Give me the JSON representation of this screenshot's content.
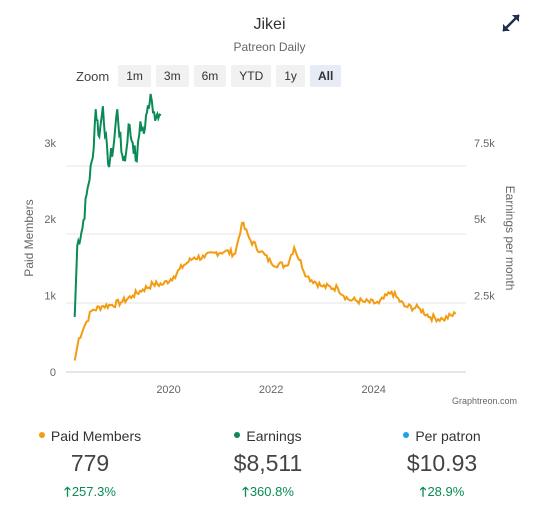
{
  "header": {
    "title": "Jikei",
    "subtitle": "Patreon Daily"
  },
  "zoom": {
    "label": "Zoom",
    "buttons": [
      {
        "label": "1m",
        "active": false
      },
      {
        "label": "3m",
        "active": false
      },
      {
        "label": "6m",
        "active": false
      },
      {
        "label": "YTD",
        "active": false
      },
      {
        "label": "1y",
        "active": false
      },
      {
        "label": "All",
        "active": true
      }
    ]
  },
  "credit": "Graphtreon.com",
  "chart_data": {
    "type": "line",
    "x_ticks": [
      "2020",
      "2022",
      "2024"
    ],
    "y_left": {
      "label": "Paid Members",
      "ticks": [
        "0",
        "1k",
        "2k",
        "3k"
      ],
      "range": [
        0,
        3600
      ]
    },
    "y_right": {
      "label": "Earnings per month",
      "ticks": [
        "2.5k",
        "5k",
        "7.5k"
      ],
      "range": [
        0,
        9000
      ]
    },
    "grid": true,
    "series": [
      {
        "name": "Paid Members",
        "axis": "left",
        "color": "#f39c12",
        "points": [
          [
            2018.17,
            150
          ],
          [
            2018.25,
            440
          ],
          [
            2018.4,
            660
          ],
          [
            2018.5,
            800
          ],
          [
            2018.7,
            860
          ],
          [
            2018.9,
            880
          ],
          [
            2019.1,
            920
          ],
          [
            2019.3,
            1000
          ],
          [
            2019.5,
            1080
          ],
          [
            2019.7,
            1150
          ],
          [
            2019.9,
            1150
          ],
          [
            2020.1,
            1250
          ],
          [
            2020.3,
            1400
          ],
          [
            2020.5,
            1500
          ],
          [
            2020.7,
            1500
          ],
          [
            2020.9,
            1560
          ],
          [
            2021.1,
            1580
          ],
          [
            2021.3,
            1550
          ],
          [
            2021.43,
            1950
          ],
          [
            2021.6,
            1720
          ],
          [
            2021.8,
            1580
          ],
          [
            2022.0,
            1430
          ],
          [
            2022.3,
            1390
          ],
          [
            2022.45,
            1630
          ],
          [
            2022.7,
            1250
          ],
          [
            2023.0,
            1120
          ],
          [
            2023.3,
            1100
          ],
          [
            2023.5,
            950
          ],
          [
            2023.8,
            920
          ],
          [
            2024.1,
            900
          ],
          [
            2024.35,
            1050
          ],
          [
            2024.6,
            860
          ],
          [
            2024.9,
            830
          ],
          [
            2025.1,
            720
          ],
          [
            2025.35,
            690
          ],
          [
            2025.6,
            760
          ]
        ]
      },
      {
        "name": "Earnings",
        "axis": "right",
        "color": "#0a8a55",
        "points": [
          [
            2018.17,
            1800
          ],
          [
            2018.22,
            4150
          ],
          [
            2018.32,
            4700
          ],
          [
            2018.42,
            6000
          ],
          [
            2018.52,
            7000
          ],
          [
            2018.58,
            8600
          ],
          [
            2018.65,
            7700
          ],
          [
            2018.72,
            8700
          ],
          [
            2018.82,
            6800
          ],
          [
            2018.92,
            7300
          ],
          [
            2019.0,
            8600
          ],
          [
            2019.08,
            7200
          ],
          [
            2019.15,
            6900
          ],
          [
            2019.22,
            8100
          ],
          [
            2019.3,
            7500
          ],
          [
            2019.38,
            6900
          ],
          [
            2019.45,
            8200
          ],
          [
            2019.52,
            7800
          ],
          [
            2019.58,
            8500
          ],
          [
            2019.65,
            9100
          ],
          [
            2019.72,
            8500
          ],
          [
            2019.8,
            8300
          ],
          [
            2019.85,
            8400
          ]
        ]
      }
    ]
  },
  "stats": [
    {
      "name": "Paid Members",
      "value": "779",
      "change": "257.3%",
      "color": "#f39c12"
    },
    {
      "name": "Earnings",
      "value": "$8,511",
      "change": "360.8%",
      "color": "#0a8a55"
    },
    {
      "name": "Per patron",
      "value": "$10.93",
      "change": "28.9%",
      "color": "#1aa3e8"
    }
  ]
}
